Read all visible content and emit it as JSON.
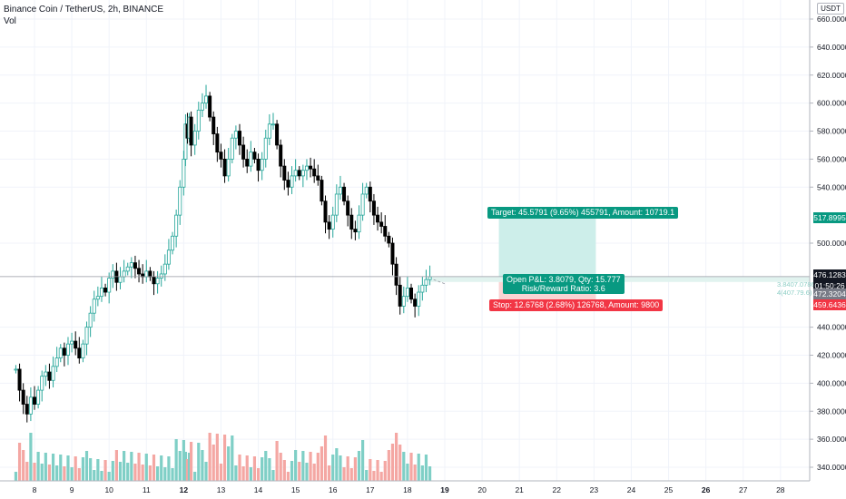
{
  "header": {
    "symbol_line": "Binance Coin / TetherUS, 2h, BINANCE",
    "volume_label": "Vol"
  },
  "currency_label": "USDT",
  "price_axis": {
    "labels": [
      "660.0000",
      "640.0000",
      "620.0000",
      "600.0000",
      "580.0000",
      "560.0000",
      "540.0000",
      "500.0000",
      "440.0000",
      "420.0000",
      "400.0000",
      "380.0000",
      "360.0000",
      "340.0000"
    ],
    "values": [
      660,
      640,
      620,
      600,
      580,
      560,
      540,
      500,
      440,
      420,
      400,
      380,
      360,
      340
    ]
  },
  "time_axis": {
    "labels": [
      "8",
      "9",
      "10",
      "11",
      "12",
      "13",
      "14",
      "15",
      "16",
      "17",
      "18",
      "19",
      "20",
      "21",
      "22",
      "23",
      "24",
      "25",
      "26",
      "27",
      "28"
    ],
    "bold": [
      "12",
      "19",
      "26"
    ]
  },
  "position": {
    "target_label": "Target: 45.5791 (9.65%) 455791, Amount: 10719.1",
    "open_pnl_label": "Open P&L: 3.8079, Qty: 15.777",
    "risk_reward_label": "Risk/Reward Ratio: 3.6",
    "stop_label": "Stop: 12.6768 (2.68%) 126768, Amount: 9800",
    "entry_note_1": "3.8407.0786",
    "entry_note_2": "4(407.79.6)"
  },
  "price_tags": {
    "target": "517.8995",
    "current": "476.1283",
    "countdown": "01:50:26",
    "entry": "472.3204",
    "stop": "459.6436"
  },
  "colors": {
    "up": "#26a69a",
    "down": "#000000",
    "vol_up": "#7fcfc6",
    "vol_down": "#f4a7a3",
    "target_zone": "#cdeeea",
    "stop_zone": "#fad4d4",
    "target_badge": "#089981",
    "stop_badge": "#f23645"
  },
  "chart_data": {
    "type": "candlestick",
    "x_start_label": "8",
    "price_range": [
      330,
      665
    ],
    "approx_series": {
      "description": "2h candles from day 7.5 to day 19",
      "points": [
        [
          7.5,
          410
        ],
        [
          7.6,
          395
        ],
        [
          7.7,
          385
        ],
        [
          7.8,
          378
        ],
        [
          7.9,
          390
        ],
        [
          8.0,
          385
        ],
        [
          8.1,
          395
        ],
        [
          8.2,
          405
        ],
        [
          8.3,
          408
        ],
        [
          8.4,
          402
        ],
        [
          8.5,
          412
        ],
        [
          8.6,
          418
        ],
        [
          8.7,
          425
        ],
        [
          8.8,
          420
        ],
        [
          8.9,
          428
        ],
        [
          9.0,
          430
        ],
        [
          9.1,
          425
        ],
        [
          9.2,
          418
        ],
        [
          9.3,
          428
        ],
        [
          9.4,
          440
        ],
        [
          9.5,
          450
        ],
        [
          9.6,
          460
        ],
        [
          9.7,
          462
        ],
        [
          9.8,
          468
        ],
        [
          9.9,
          465
        ],
        [
          10.0,
          475
        ],
        [
          10.1,
          480
        ],
        [
          10.2,
          472
        ],
        [
          10.3,
          476
        ],
        [
          10.4,
          480
        ],
        [
          10.5,
          483
        ],
        [
          10.6,
          486
        ],
        [
          10.7,
          482
        ],
        [
          10.8,
          478
        ],
        [
          10.9,
          476
        ],
        [
          11.0,
          480
        ],
        [
          11.1,
          476
        ],
        [
          11.2,
          471
        ],
        [
          11.3,
          475
        ],
        [
          11.4,
          478
        ],
        [
          11.5,
          485
        ],
        [
          11.6,
          495
        ],
        [
          11.7,
          505
        ],
        [
          11.8,
          520
        ],
        [
          11.9,
          540
        ],
        [
          12.0,
          560
        ],
        [
          12.05,
          585
        ],
        [
          12.1,
          575
        ],
        [
          12.15,
          590
        ],
        [
          12.2,
          570
        ],
        [
          12.3,
          580
        ],
        [
          12.4,
          595
        ],
        [
          12.5,
          600
        ],
        [
          12.6,
          605
        ],
        [
          12.7,
          590
        ],
        [
          12.8,
          578
        ],
        [
          12.9,
          565
        ],
        [
          13.0,
          560
        ],
        [
          13.1,
          548
        ],
        [
          13.2,
          560
        ],
        [
          13.3,
          575
        ],
        [
          13.4,
          580
        ],
        [
          13.5,
          570
        ],
        [
          13.6,
          560
        ],
        [
          13.7,
          555
        ],
        [
          13.8,
          565
        ],
        [
          13.9,
          560
        ],
        [
          14.0,
          552
        ],
        [
          14.1,
          560
        ],
        [
          14.2,
          575
        ],
        [
          14.3,
          585
        ],
        [
          14.4,
          585
        ],
        [
          14.5,
          570
        ],
        [
          14.6,
          555
        ],
        [
          14.7,
          545
        ],
        [
          14.8,
          540
        ],
        [
          14.9,
          548
        ],
        [
          15.0,
          552
        ],
        [
          15.1,
          548
        ],
        [
          15.2,
          552
        ],
        [
          15.3,
          555
        ],
        [
          15.4,
          553
        ],
        [
          15.5,
          548
        ],
        [
          15.6,
          545
        ],
        [
          15.7,
          530
        ],
        [
          15.8,
          515
        ],
        [
          15.9,
          510
        ],
        [
          16.0,
          520
        ],
        [
          16.1,
          535
        ],
        [
          16.2,
          540
        ],
        [
          16.3,
          530
        ],
        [
          16.4,
          520
        ],
        [
          16.5,
          510
        ],
        [
          16.6,
          508
        ],
        [
          16.7,
          520
        ],
        [
          16.8,
          535
        ],
        [
          16.9,
          540
        ],
        [
          17.0,
          530
        ],
        [
          17.1,
          520
        ],
        [
          17.2,
          515
        ],
        [
          17.3,
          512
        ],
        [
          17.4,
          505
        ],
        [
          17.5,
          500
        ],
        [
          17.6,
          485
        ],
        [
          17.7,
          470
        ],
        [
          17.8,
          455
        ],
        [
          17.9,
          462
        ],
        [
          18.0,
          468
        ],
        [
          18.1,
          460
        ],
        [
          18.2,
          455
        ],
        [
          18.3,
          465
        ],
        [
          18.4,
          470
        ],
        [
          18.5,
          474
        ],
        [
          18.6,
          476
        ]
      ]
    }
  }
}
